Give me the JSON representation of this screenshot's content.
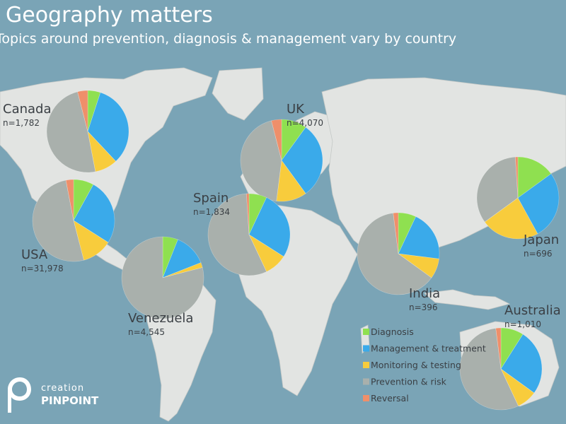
{
  "title": "Geography matters",
  "subtitle": "Topics around prevention, diagnosis & management vary by country",
  "logo": {
    "top": "creation",
    "bottom": "PINPOINT"
  },
  "chart_data": {
    "type": "pie",
    "legend_position": "bottom-right",
    "categories": [
      {
        "name": "Diagnosis",
        "color": "#8fe050"
      },
      {
        "name": "Management & treatment",
        "color": "#3aaaea"
      },
      {
        "name": "Monitoring & testing",
        "color": "#f8cc3c"
      },
      {
        "name": "Prevention & risk",
        "color": "#a9b0ac"
      },
      {
        "name": "Reversal",
        "color": "#ef8f6a"
      }
    ],
    "pies": [
      {
        "country": "Canada",
        "n": "n=1,782",
        "values": [
          5,
          33,
          9,
          49,
          4
        ]
      },
      {
        "country": "UK",
        "n": "n=4,070",
        "values": [
          10,
          30,
          12,
          44,
          4
        ]
      },
      {
        "country": "USA",
        "n": "n=31,978",
        "values": [
          8,
          26,
          12,
          51,
          3
        ]
      },
      {
        "country": "Spain",
        "n": "n=1,834",
        "values": [
          7,
          27,
          9,
          56,
          1
        ]
      },
      {
        "country": "Venezuela",
        "n": "n=4,545",
        "values": [
          6,
          13,
          2,
          79,
          0
        ]
      },
      {
        "country": "India",
        "n": "n=396",
        "values": [
          7,
          20,
          8,
          63,
          2
        ]
      },
      {
        "country": "Japan",
        "n": "n=696",
        "values": [
          15,
          27,
          23,
          34,
          1
        ]
      },
      {
        "country": "Australia",
        "n": "n=1,010",
        "values": [
          9,
          26,
          8,
          55,
          2
        ]
      }
    ]
  }
}
